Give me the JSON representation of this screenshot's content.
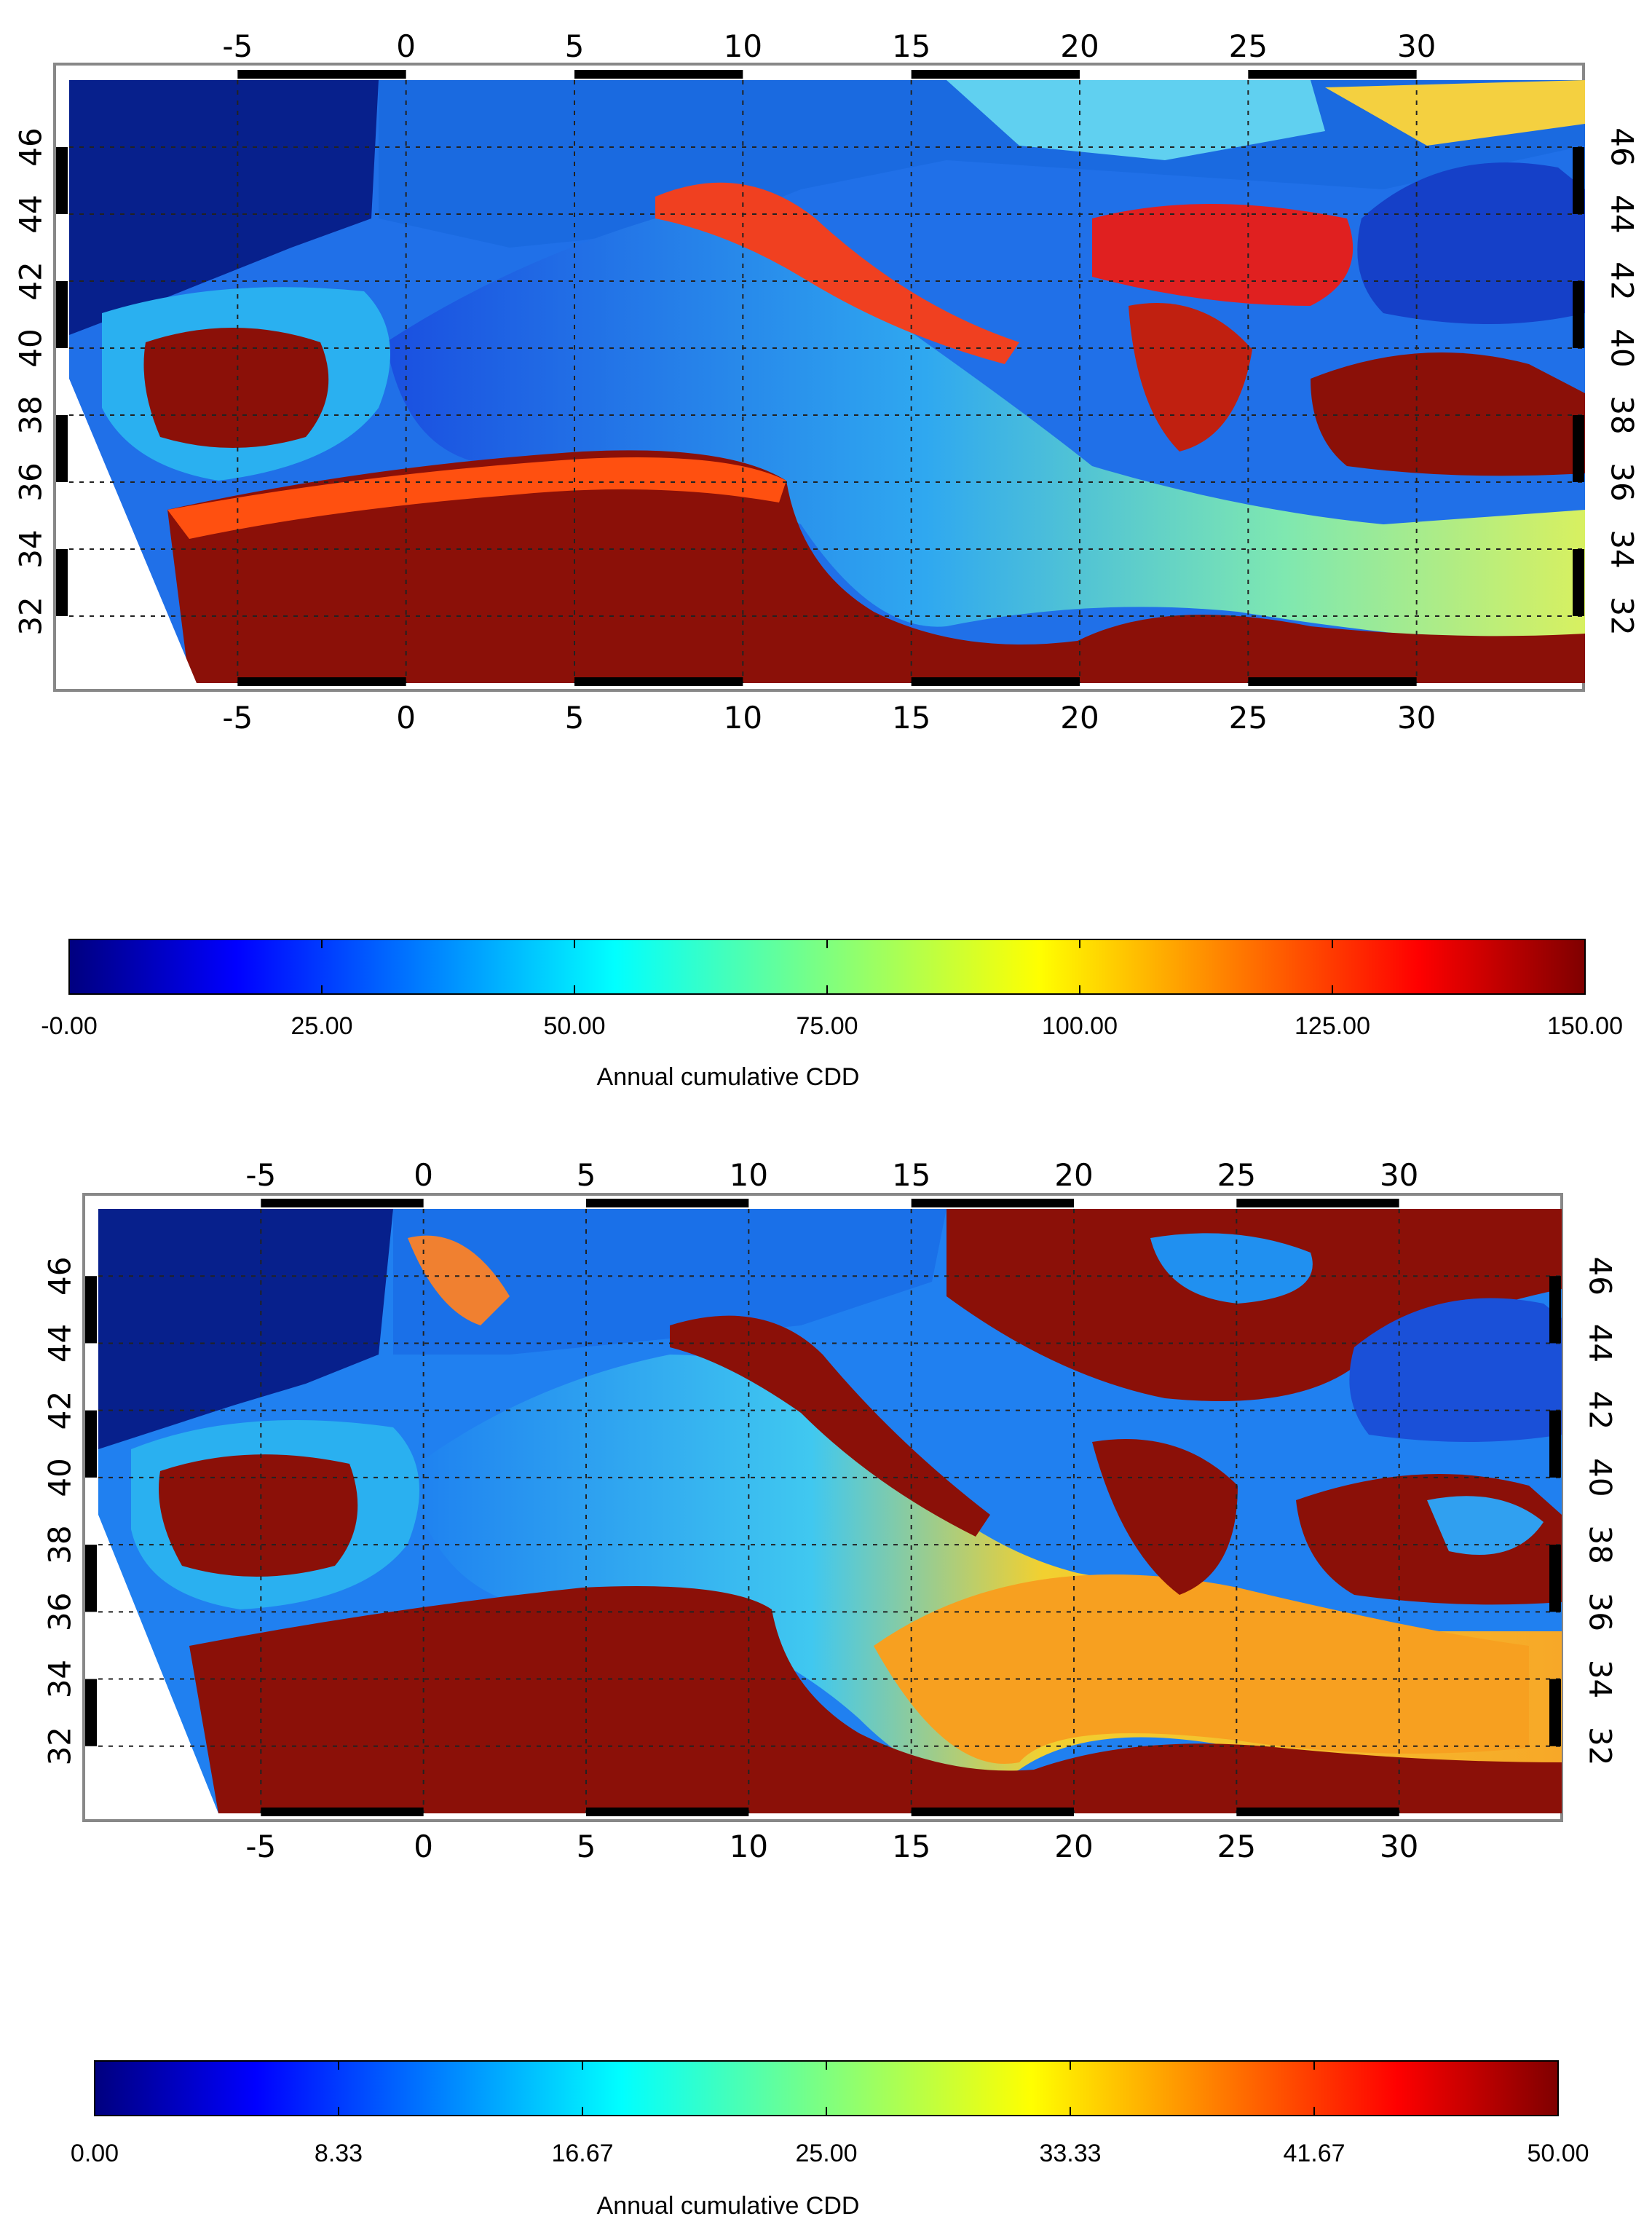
{
  "maps": [
    {
      "id": "top",
      "lon_ticks": [
        "-5",
        "0",
        "5",
        "10",
        "15",
        "20",
        "25",
        "30"
      ],
      "lat_ticks": [
        "32",
        "34",
        "36",
        "38",
        "40",
        "42",
        "44",
        "46"
      ],
      "colorbar": {
        "ticks": [
          "-0.00",
          "25.00",
          "50.00",
          "75.00",
          "100.00",
          "125.00",
          "150.00"
        ],
        "range": [
          0,
          150
        ],
        "label": "Annual cumulative CDD"
      }
    },
    {
      "id": "bottom",
      "lon_ticks": [
        "-5",
        "0",
        "5",
        "10",
        "15",
        "20",
        "25",
        "30"
      ],
      "lat_ticks": [
        "32",
        "34",
        "36",
        "38",
        "40",
        "42",
        "44",
        "46"
      ],
      "colorbar": {
        "ticks": [
          "0.00",
          "8.33",
          "16.67",
          "25.00",
          "33.33",
          "41.67",
          "50.00"
        ],
        "range": [
          0,
          50
        ],
        "label": "Annual cumulative CDD"
      }
    }
  ],
  "extent": {
    "lon": [
      -10,
      35
    ],
    "lat": [
      30,
      48
    ]
  },
  "colormap": [
    "#00007f",
    "#0000ff",
    "#007fff",
    "#00ffff",
    "#7fff7f",
    "#ffff00",
    "#ff7f00",
    "#ff0000",
    "#7f0000"
  ],
  "palette": {
    "sea_high": "#2e6fe8",
    "sea_low": "#4ab8f0",
    "land_hot": "#8b1008",
    "atlantic": "#07208c",
    "black_sea": "#1540c8",
    "warm_sea_a": "#f2c030",
    "warm_sea_b": "#f7a020",
    "nodata": "#ffffff"
  }
}
